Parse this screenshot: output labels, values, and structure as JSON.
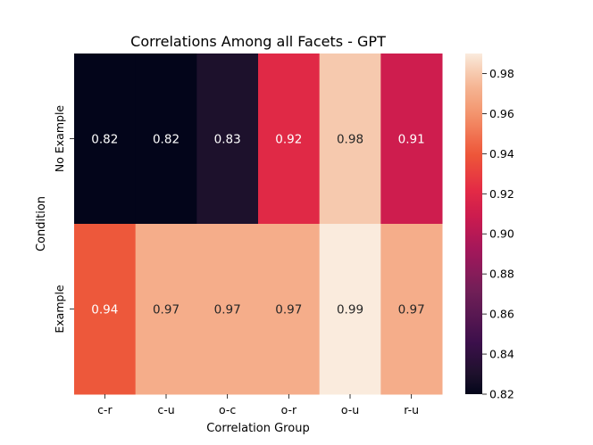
{
  "chart_data": {
    "type": "heatmap",
    "title": "Correlations Among all Facets - GPT",
    "xlabel": "Correlation Group",
    "ylabel": "Condition",
    "x_categories": [
      "c-r",
      "c-u",
      "o-c",
      "o-r",
      "o-u",
      "r-u"
    ],
    "y_categories": [
      "No Example",
      "Example"
    ],
    "values": [
      [
        0.82,
        0.82,
        0.83,
        0.92,
        0.98,
        0.91
      ],
      [
        0.94,
        0.97,
        0.97,
        0.97,
        0.99,
        0.97
      ]
    ],
    "annotations": [
      [
        "0.82",
        "0.82",
        "0.83",
        "0.92",
        "0.98",
        "0.91"
      ],
      [
        "0.94",
        "0.97",
        "0.97",
        "0.97",
        "0.99",
        "0.97"
      ]
    ],
    "colorbar": {
      "range": [
        0.82,
        0.99
      ],
      "ticks": [
        0.82,
        0.84,
        0.86,
        0.88,
        0.9,
        0.92,
        0.94,
        0.96,
        0.98
      ],
      "tick_labels": [
        "0.82",
        "0.84",
        "0.86",
        "0.88",
        "0.90",
        "0.92",
        "0.94",
        "0.96",
        "0.98"
      ],
      "colormap": "rocket"
    },
    "grid": false
  }
}
